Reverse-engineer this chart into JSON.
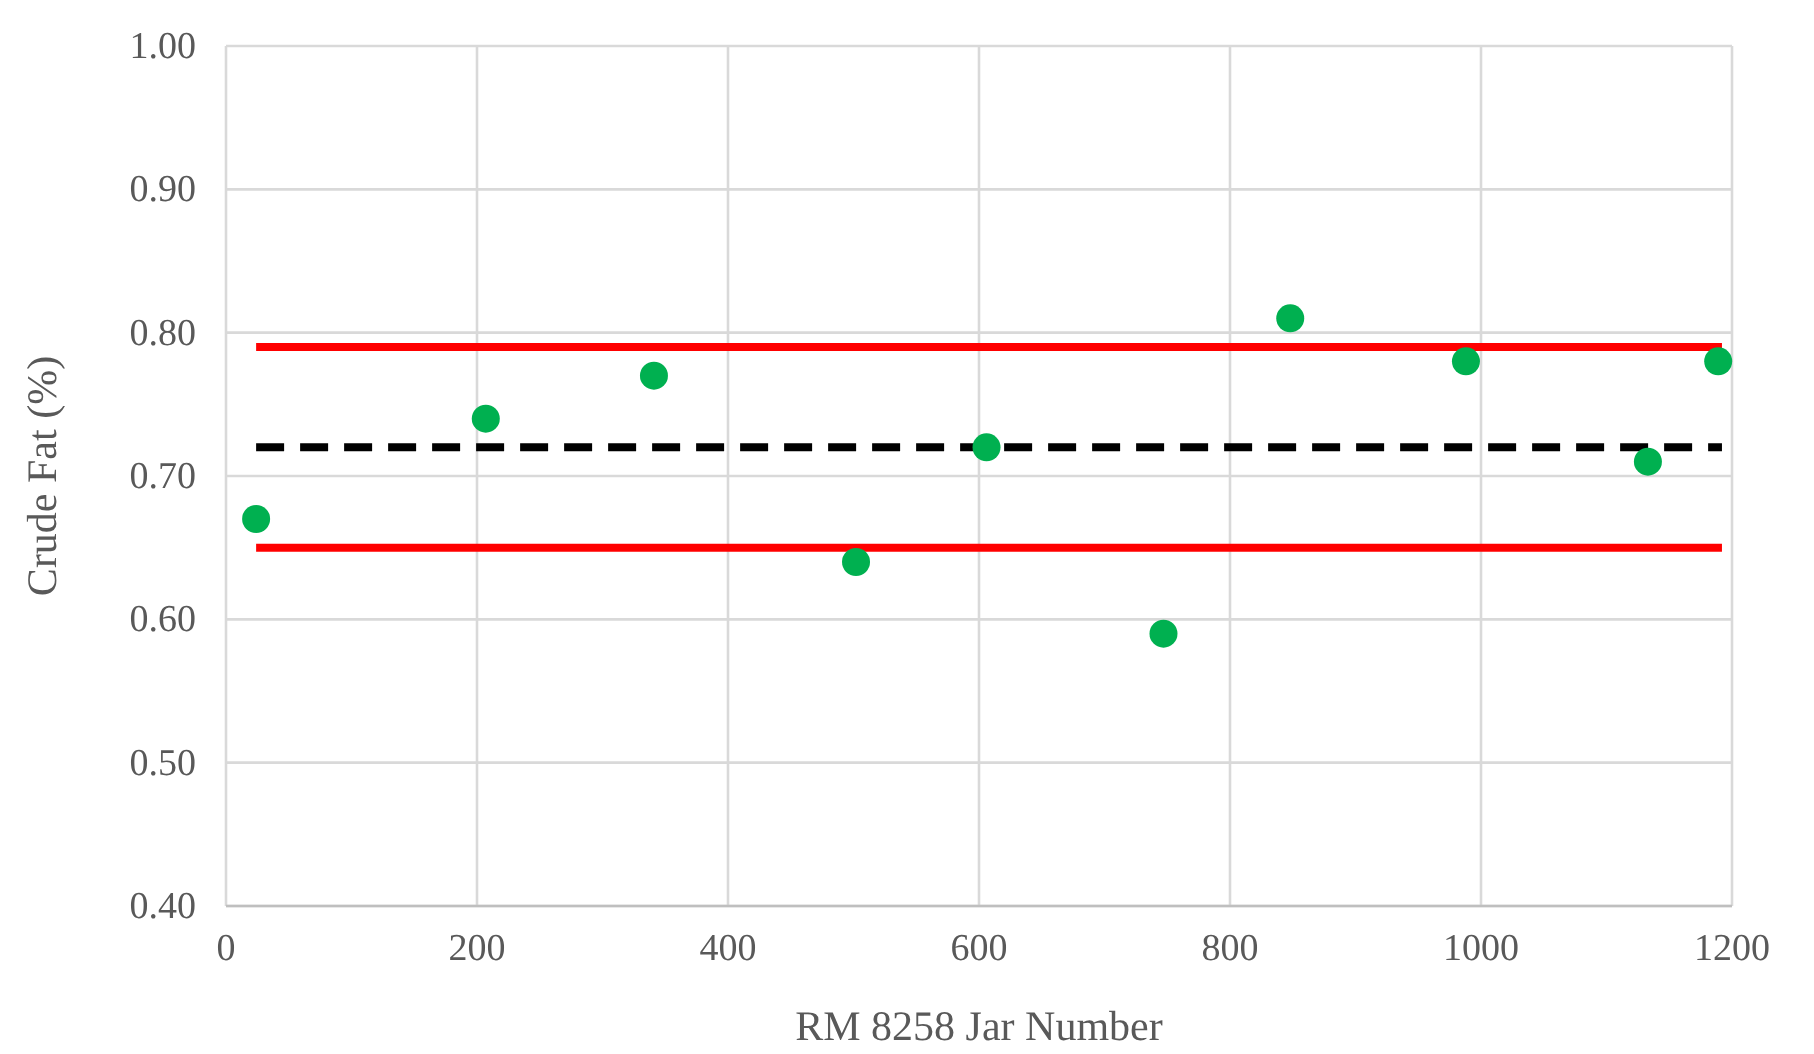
{
  "chart_data": {
    "type": "scatter",
    "xlabel": "RM 8258 Jar Number",
    "ylabel": "Crude Fat (%)",
    "xlim": [
      0,
      1200
    ],
    "xticks": [
      0,
      200,
      400,
      600,
      800,
      1000,
      1200
    ],
    "ylim": [
      0.4,
      1.0
    ],
    "yticks": [
      {
        "value": 0.4,
        "label": "0.40"
      },
      {
        "value": 0.5,
        "label": "0.50"
      },
      {
        "value": 0.6,
        "label": "0.60"
      },
      {
        "value": 0.7,
        "label": "0.70"
      },
      {
        "value": 0.8,
        "label": "0.80"
      },
      {
        "value": 0.9,
        "label": "0.90"
      },
      {
        "value": 1.0,
        "label": "1.00"
      }
    ],
    "grid": true,
    "series": [
      {
        "type": "line",
        "color": "#ff0000",
        "x": [
          24,
          1192
        ],
        "values": [
          0.79,
          0.79
        ],
        "line_style": "solid"
      },
      {
        "type": "line",
        "color": "#ff0000",
        "x": [
          24,
          1192
        ],
        "values": [
          0.65,
          0.65
        ],
        "line_style": "solid"
      },
      {
        "type": "line",
        "color": "#000000",
        "x": [
          24,
          1192
        ],
        "values": [
          0.72,
          0.72
        ],
        "line_style": "dashed"
      },
      {
        "color": "#00b050",
        "marker": "circle",
        "x": [
          24,
          207,
          341,
          502,
          606,
          747,
          848,
          988,
          1133,
          1189
        ],
        "values": [
          0.67,
          0.74,
          0.77,
          0.64,
          0.72,
          0.59,
          0.81,
          0.78,
          0.71,
          0.78
        ]
      }
    ]
  }
}
